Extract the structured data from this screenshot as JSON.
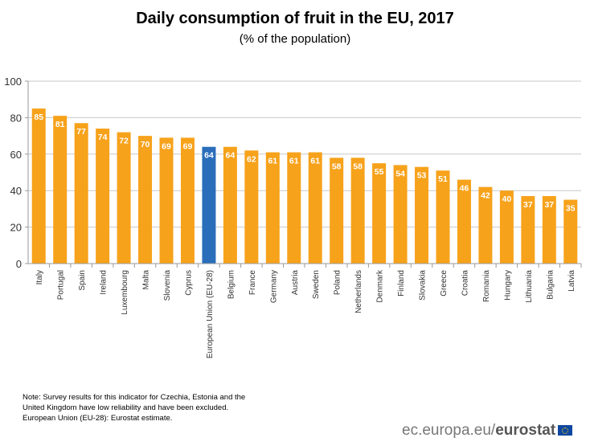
{
  "chart_data": {
    "type": "bar",
    "title": "Daily consumption of fruit in the EU, 2017",
    "subtitle": "(% of the population)",
    "categories": [
      "Italy",
      "Portugal",
      "Spain",
      "Ireland",
      "Luxembourg",
      "Malta",
      "Slovenia",
      "Cyprus",
      "European Union (EU-28)",
      "Belgium",
      "France",
      "Germany",
      "Austria",
      "Sweden",
      "Poland",
      "Netherlands",
      "Denmark",
      "Finland",
      "Slovakia",
      "Greece",
      "Croatia",
      "Romania",
      "Hungary",
      "Lithuania",
      "Bulgaria",
      "Latvia"
    ],
    "values": [
      85,
      81,
      77,
      74,
      72,
      70,
      69,
      69,
      64,
      64,
      62,
      61,
      61,
      61,
      58,
      58,
      55,
      54,
      53,
      51,
      46,
      42,
      40,
      37,
      37,
      35
    ],
    "highlight": "European Union (EU-28)",
    "ylim": [
      0,
      100
    ],
    "yticks": [
      0,
      20,
      40,
      60,
      80,
      100
    ],
    "grid": true,
    "colors": {
      "bar": "#f7a21b",
      "highlight": "#2a6ebb",
      "grid": "#c8c8c8",
      "label": "#ffffff"
    }
  },
  "note": {
    "lines": [
      "Note: Survey results for this indicator for Czechia, Estonia and the",
      "United Kingdom  have low reliability and have been excluded.",
      "European Union (EU-28): Eurostat estimate."
    ]
  },
  "logo": {
    "prefix": "ec.europa.eu/",
    "brand": "eurostat"
  }
}
